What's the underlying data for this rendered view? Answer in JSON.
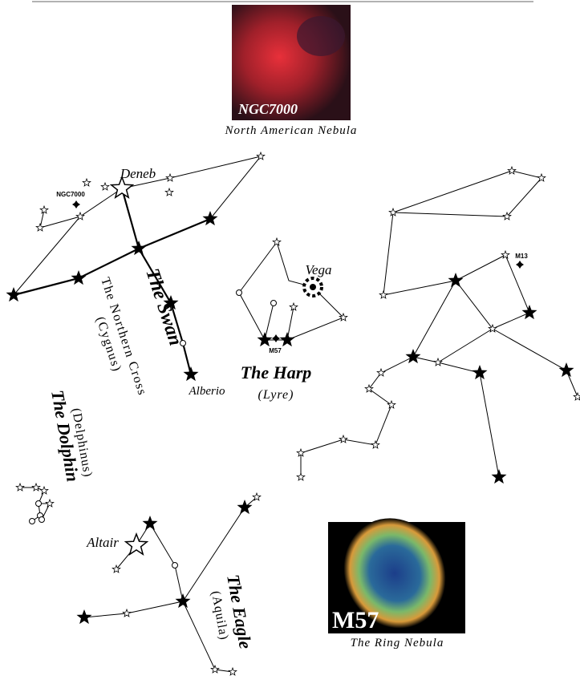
{
  "images": [
    {
      "label": "NGC7000",
      "caption": "North American Nebula"
    },
    {
      "label": "M57",
      "caption": "The Ring Nebula"
    }
  ],
  "constellations": [
    {
      "name": "The Swan",
      "subtitle": "The Northern Cross",
      "latin": "(Cygnus)",
      "star_labels": [
        "Deneb",
        "Alberio"
      ],
      "object_label": "NGC7000"
    },
    {
      "name": "The Harp",
      "latin": "(Lyre)",
      "star_labels": [
        "Vega"
      ],
      "object_label": "M57"
    },
    {
      "object_label": "M13"
    },
    {
      "name": "The Dolphin",
      "latin": "(Delphinus)"
    },
    {
      "name": "The Eagle",
      "latin": "(Aquila)",
      "star_labels": [
        "Altair"
      ]
    }
  ]
}
